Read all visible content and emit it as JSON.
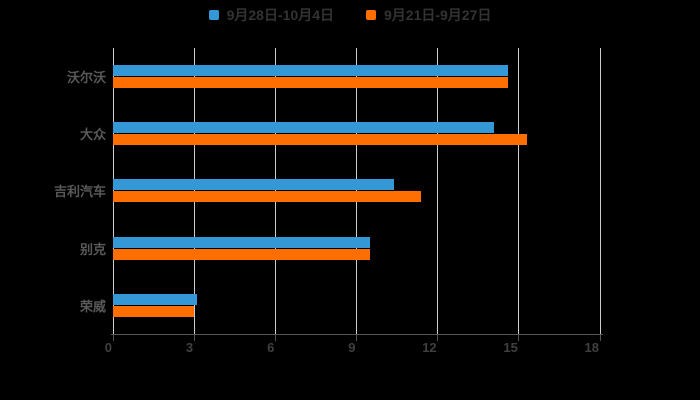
{
  "chart_data": {
    "type": "bar",
    "orientation": "horizontal",
    "title": "",
    "categories": [
      "沃尔沃",
      "大众",
      "吉利汽车",
      "别克",
      "荣威"
    ],
    "series": [
      {
        "name": "9月28日-10月4日",
        "color": "#3498d6",
        "values": [
          14.6,
          14.1,
          10.4,
          9.5,
          3.1
        ]
      },
      {
        "name": "9月21日-9月27日",
        "color": "#ff6e00",
        "values": [
          14.6,
          15.3,
          11.4,
          9.5,
          3.0
        ]
      }
    ],
    "xlabel": "",
    "ylabel": "",
    "xlim": [
      0,
      18
    ],
    "xticks": [
      0,
      3,
      6,
      9,
      12,
      15,
      18
    ],
    "grid": true,
    "legend_position": "top"
  },
  "colors": {
    "background": "#000000",
    "series_blue": "#3498d6",
    "series_orange": "#ff6e00",
    "gridline": "#cccccc",
    "axis_line": "#555555",
    "tick_label": "#404040",
    "category_label": "#595959",
    "legend_text": "#333333"
  }
}
